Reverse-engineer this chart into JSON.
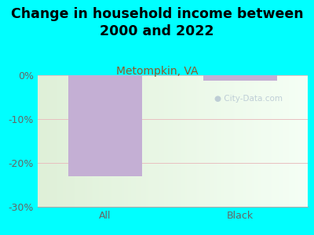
{
  "title": "Change in household income between\n2000 and 2022",
  "subtitle": "Metompkin, VA",
  "categories": [
    "All",
    "Black"
  ],
  "values": [
    -23.0,
    -1.2
  ],
  "bar_color": "#c4afd4",
  "background_color": "#00FFFF",
  "plot_bg_color_left": "#dff0d8",
  "plot_bg_color_right": "#f0faf0",
  "ylim": [
    -30,
    0
  ],
  "yticks": [
    0,
    -10,
    -20,
    -30
  ],
  "ytick_labels": [
    "0%",
    "-10%",
    "-20%",
    "-30%"
  ],
  "grid_color": "#e8c0c0",
  "title_fontsize": 12.5,
  "subtitle_color": "#8B5A2B",
  "subtitle_fontsize": 10,
  "tick_label_fontsize": 9,
  "axis_label_color": "#666666",
  "bar_width": 0.55
}
